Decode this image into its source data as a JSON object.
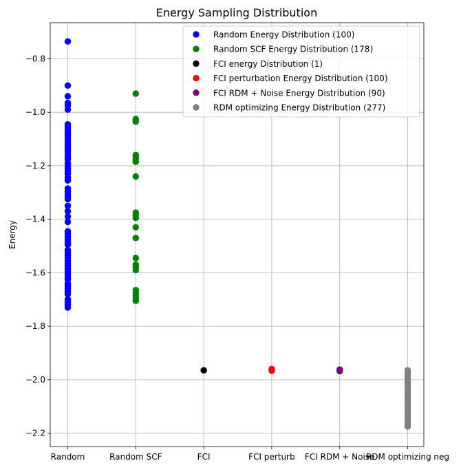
{
  "chart_data": {
    "type": "scatter",
    "title": "Energy Sampling Distribution",
    "xlabel": "",
    "ylabel": "Energy",
    "ylim": [
      -2.25,
      -0.665
    ],
    "yticks": [
      -2.2,
      -2.0,
      -1.8,
      -1.6,
      -1.4,
      -1.2,
      -1.0,
      -0.8
    ],
    "ytick_labels": [
      "−2.2",
      "−2.0",
      "−1.8",
      "−1.6",
      "−1.4",
      "−1.2",
      "−1.0",
      "−0.8"
    ],
    "categories": [
      "Random",
      "Random SCF",
      "FCI",
      "FCI perturb",
      "FCI RDM + Noise",
      "RDM optimizing neg"
    ],
    "grid": true,
    "legend_position": "top-right",
    "series": [
      {
        "name": "Random Energy Distribution (100)",
        "color": "#0000ff",
        "category": "Random",
        "y": [
          -0.735,
          -0.9,
          -0.94,
          -0.965,
          -0.975,
          -0.99,
          -1.045,
          -1.055,
          -1.065,
          -1.075,
          -1.085,
          -1.095,
          -1.105,
          -1.115,
          -1.125,
          -1.135,
          -1.145,
          -1.155,
          -1.165,
          -1.175,
          -1.19,
          -1.2,
          -1.21,
          -1.22,
          -1.23,
          -1.245,
          -1.255,
          -1.285,
          -1.295,
          -1.305,
          -1.315,
          -1.325,
          -1.35,
          -1.37,
          -1.39,
          -1.41,
          -1.445,
          -1.455,
          -1.465,
          -1.475,
          -1.485,
          -1.495,
          -1.515,
          -1.525,
          -1.535,
          -1.545,
          -1.555,
          -1.565,
          -1.575,
          -1.585,
          -1.595,
          -1.605,
          -1.615,
          -1.625,
          -1.64,
          -1.65,
          -1.66,
          -1.67,
          -1.68,
          -1.7,
          -1.71,
          -1.72,
          -1.73
        ]
      },
      {
        "name": "Random SCF Energy Distribution (178)",
        "color": "#008000",
        "category": "Random SCF",
        "y": [
          -0.93,
          -1.025,
          -1.03,
          -1.035,
          -1.16,
          -1.165,
          -1.175,
          -1.185,
          -1.24,
          -1.375,
          -1.385,
          -1.395,
          -1.43,
          -1.47,
          -1.545,
          -1.57,
          -1.58,
          -1.59,
          -1.665,
          -1.675,
          -1.685,
          -1.695,
          -1.705
        ]
      },
      {
        "name": "FCI energy Distribution (1)",
        "color": "#000000",
        "category": "FCI",
        "y": [
          -1.965
        ]
      },
      {
        "name": "FCI perturbation Energy Distribution (100)",
        "color": "#ff0000",
        "category": "FCI perturb",
        "y": [
          -1.96,
          -1.963,
          -1.966
        ]
      },
      {
        "name": "FCI RDM + Noise Energy Distribution (90)",
        "color": "#800080",
        "category": "FCI RDM + Noise",
        "y": [
          -1.962,
          -1.965,
          -1.968
        ]
      },
      {
        "name": "RDM optimizing Energy Distribution (277)",
        "color": "#808080",
        "category": "RDM optimizing neg",
        "y": [
          -1.965,
          -1.975,
          -1.985,
          -1.995,
          -2.005,
          -2.015,
          -2.025,
          -2.035,
          -2.045,
          -2.055,
          -2.065,
          -2.075,
          -2.085,
          -2.095,
          -2.105,
          -2.115,
          -2.125,
          -2.135,
          -2.145,
          -2.155,
          -2.165,
          -2.175
        ]
      }
    ]
  }
}
